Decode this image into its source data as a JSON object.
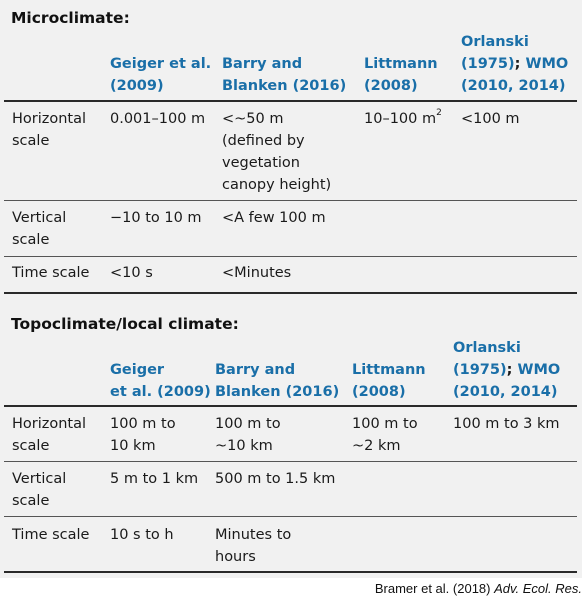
{
  "micro": {
    "title": "Microclimate:",
    "headers": {
      "geiger": [
        "Geiger et al.",
        "(2009)"
      ],
      "barry": [
        "Barry and",
        "Blanken (2016)"
      ],
      "littmann": [
        "Littmann",
        "(2008)"
      ],
      "orlanski": [
        "Orlanski",
        "(1975)",
        "; ",
        "WMO",
        "(2010, 2014)"
      ]
    },
    "rows": {
      "horizontal": {
        "label": [
          "Horizontal",
          "scale"
        ],
        "geiger": "0.001–100 m",
        "barry": [
          "<~50 m",
          "(defined by",
          "vegetation",
          "canopy height)"
        ],
        "littmann": "10–100 m",
        "littmann_sup": "2",
        "orlanski": "<100 m"
      },
      "vertical": {
        "label": [
          "Vertical",
          "scale"
        ],
        "geiger": "−10 to 10 m",
        "barry": "<A few 100 m"
      },
      "time": {
        "label": "Time scale",
        "geiger": "<10 s",
        "barry": "<Minutes"
      }
    }
  },
  "topo": {
    "title": "Topoclimate/local climate:",
    "headers": {
      "geiger": [
        "Geiger",
        "et al. (2009)"
      ],
      "barry": [
        "Barry and",
        "Blanken (2016)"
      ],
      "littmann": [
        "Littmann",
        "(2008)"
      ],
      "orlanski": [
        "Orlanski",
        "(1975)",
        "; ",
        "WMO",
        "(2010, 2014)"
      ]
    },
    "rows": {
      "horizontal": {
        "label": [
          "Horizontal",
          "scale"
        ],
        "geiger": [
          "100 m to",
          "10 km"
        ],
        "barry": [
          "100 m to",
          "~10 km"
        ],
        "littmann": [
          "100 m to",
          "~2 km"
        ],
        "orlanski": "100 m to 3 km"
      },
      "vertical": {
        "label": [
          "Vertical",
          "scale"
        ],
        "geiger": "5 m to 1 km",
        "barry": "500 m to 1.5 km"
      },
      "time": {
        "label": "Time scale",
        "geiger": "10 s to h",
        "barry": [
          "Minutes to",
          "hours"
        ]
      }
    }
  },
  "credit": {
    "text": "Bramer et al. (2018) ",
    "journal": "Adv. Ecol. Res."
  }
}
